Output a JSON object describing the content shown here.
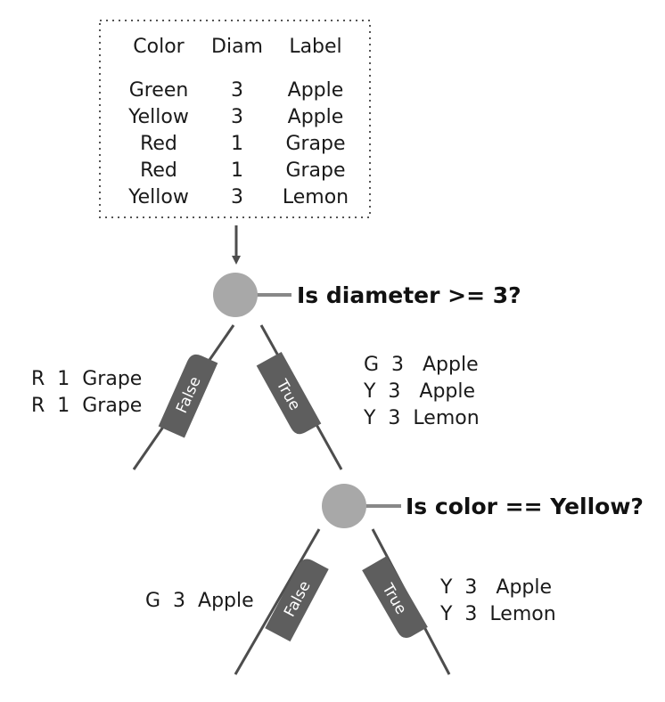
{
  "dataset": {
    "headers": [
      "Color",
      "Diam",
      "Label"
    ],
    "rows": [
      [
        "Green",
        "3",
        "Apple"
      ],
      [
        "Yellow",
        "3",
        "Apple"
      ],
      [
        "Red",
        "1",
        "Grape"
      ],
      [
        "Red",
        "1",
        "Grape"
      ],
      [
        "Yellow",
        "3",
        "Lemon"
      ]
    ]
  },
  "nodes": [
    {
      "question": "Is diameter >= 3?",
      "false_branch": {
        "tag": "False",
        "rows": [
          "R  1  Grape",
          "R  1  Grape"
        ]
      },
      "true_branch": {
        "tag": "True",
        "rows": [
          "G  3   Apple",
          "Y  3   Apple",
          "Y  3  Lemon"
        ]
      }
    },
    {
      "question": "Is color == Yellow?",
      "false_branch": {
        "tag": "False",
        "rows": [
          "G  3  Apple"
        ]
      },
      "true_branch": {
        "tag": "True",
        "rows": [
          "Y  3   Apple",
          "Y  3  Lemon"
        ]
      }
    }
  ],
  "colors": {
    "node_fill": "#a8a8a8",
    "line": "#4d4d4d",
    "tag_fill": "#5e5e5e",
    "table_border": "#555555"
  }
}
